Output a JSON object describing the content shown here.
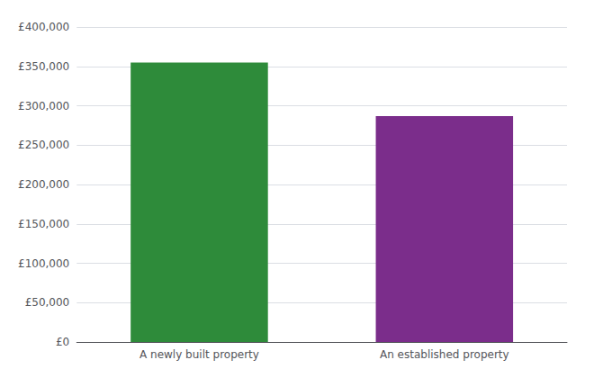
{
  "chart_data": {
    "type": "bar",
    "categories": [
      "A newly built property",
      "An established property"
    ],
    "values": [
      355000,
      287000
    ],
    "colors": [
      "#2e8b3a",
      "#7b2d8b"
    ],
    "ylim": [
      0,
      400000
    ],
    "yticks": [
      {
        "value": 0,
        "label": "£0"
      },
      {
        "value": 50000,
        "label": "£50,000"
      },
      {
        "value": 100000,
        "label": "£100,000"
      },
      {
        "value": 150000,
        "label": "£150,000"
      },
      {
        "value": 200000,
        "label": "£200,000"
      },
      {
        "value": 250000,
        "label": "£250,000"
      },
      {
        "value": 300000,
        "label": "£300,000"
      },
      {
        "value": 350000,
        "label": "£350,000"
      },
      {
        "value": 400000,
        "label": "£400,000"
      }
    ],
    "grid": true
  }
}
